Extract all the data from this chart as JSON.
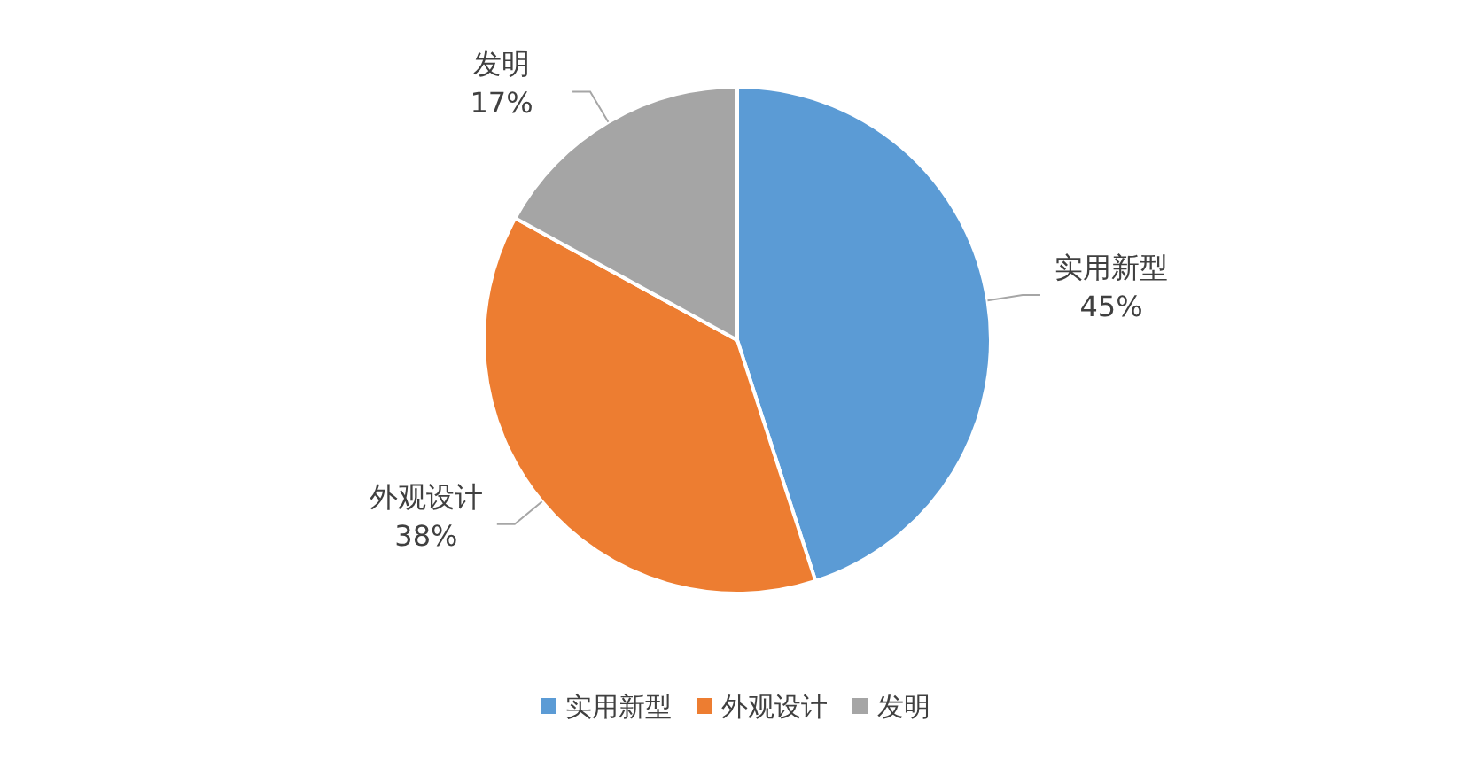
{
  "chart_data": {
    "type": "pie",
    "categories": [
      "实用新型",
      "外观设计",
      "发明"
    ],
    "values": [
      45,
      38,
      17
    ],
    "colors": [
      "#5b9bd5",
      "#ed7d31",
      "#a5a5a5"
    ],
    "value_labels": [
      "45%",
      "38%",
      "17%"
    ],
    "legend": "bottom"
  }
}
